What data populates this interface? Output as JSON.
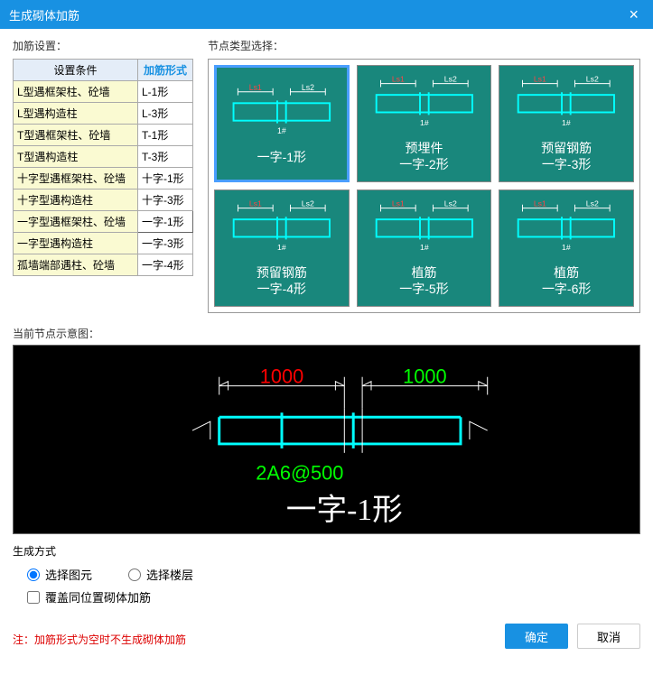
{
  "titlebar": {
    "title": "生成砌体加筋"
  },
  "labels": {
    "settings": "加筋设置：",
    "nodeType": "节点类型选择：",
    "preview": "当前节点示意图：",
    "genMode": "生成方式",
    "note": "注：加筋形式为空时不生成砌体加筋"
  },
  "table": {
    "headers": [
      "设置条件",
      "加筋形式"
    ],
    "rows": [
      {
        "c1": "L型遇框架柱、砼墙",
        "c2": "L-1形"
      },
      {
        "c1": "L型遇构造柱",
        "c2": "L-3形"
      },
      {
        "c1": "T型遇框架柱、砼墙",
        "c2": "T-1形"
      },
      {
        "c1": "T型遇构造柱",
        "c2": "T-3形"
      },
      {
        "c1": "十字型遇框架柱、砼墙",
        "c2": "十字-1形"
      },
      {
        "c1": "十字型遇构造柱",
        "c2": "十字-3形"
      },
      {
        "c1": "一字型遇框架柱、砼墙",
        "c2": "一字-1形",
        "selected": true
      },
      {
        "c1": "一字型遇构造柱",
        "c2": "一字-3形"
      },
      {
        "c1": "孤墙端部遇柱、砼墙",
        "c2": "一字-4形"
      }
    ]
  },
  "thumbs": [
    {
      "label": "一字-1形",
      "selected": true
    },
    {
      "label": "预埋件\n一字-2形"
    },
    {
      "label": "预留钢筋\n一字-3形"
    },
    {
      "label": "预留钢筋\n一字-4形"
    },
    {
      "label": "植筋\n一字-5形"
    },
    {
      "label": "植筋\n一字-6形"
    }
  ],
  "preview": {
    "dim1": "1000",
    "dim1_color": "#ff0000",
    "dim2": "1000",
    "dim2_color": "#00ff00",
    "spec": "2A6@500",
    "spec_color": "#00ff00",
    "name": "一字-1形",
    "rebar_color": "#00ffff"
  },
  "gen": {
    "opt1": "选择图元",
    "opt2": "选择楼层",
    "chk": "覆盖同位置砌体加筋"
  },
  "buttons": {
    "ok": "确定",
    "cancel": "取消"
  }
}
